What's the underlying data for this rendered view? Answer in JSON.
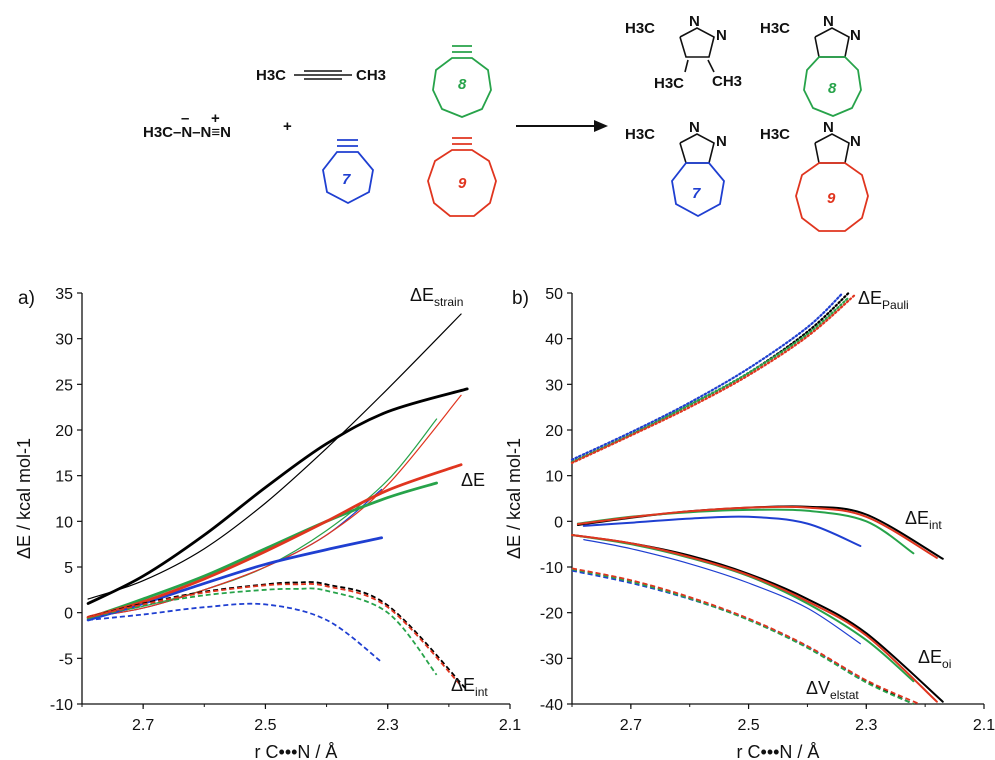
{
  "scheme": {
    "azide": "H3C–N–N≡N",
    "plus": "+",
    "butyne": "H3C—≡—CH3",
    "ring_labels": {
      "7": "7",
      "8": "8",
      "9": "9"
    },
    "methyl_label": "H3C",
    "methyl_label_r": "CH3",
    "triazole_n": "N",
    "colors": {
      "7": "#1f3fd1",
      "8": "#27a34a",
      "9": "#e0351f",
      "parent": "#000000"
    }
  },
  "chart_data": [
    {
      "panel": "a)",
      "type": "line",
      "xlabel": "r C•••N / Å",
      "ylabel": "ΔE / kcal mol-1",
      "xlim": [
        2.8,
        2.1
      ],
      "ylim": [
        -10,
        35
      ],
      "xticks": [
        "2.7",
        "2.5",
        "2.3",
        "2.1"
      ],
      "yticks": [
        "35",
        "30",
        "25",
        "20",
        "15",
        "10",
        "5",
        "0",
        "-5",
        "-10"
      ],
      "annotations": [
        {
          "text": "ΔE",
          "sub": "strain"
        },
        {
          "text": "ΔE",
          "sub": ""
        },
        {
          "text": "ΔE",
          "sub": "int"
        }
      ],
      "series": [
        {
          "term": "strain",
          "system": "parent",
          "style": "thin",
          "color": "#000000",
          "x": [
            2.79,
            2.7,
            2.6,
            2.5,
            2.4,
            2.3,
            2.18
          ],
          "y": [
            1.5,
            3.5,
            7.0,
            12.0,
            18.0,
            24.5,
            32.7
          ]
        },
        {
          "term": "strain",
          "system": "7",
          "style": "thin",
          "color": "#1f3fd1",
          "x": [
            2.79,
            2.7,
            2.6,
            2.5,
            2.4,
            2.31
          ],
          "y": [
            -0.5,
            0.5,
            2.5,
            5.0,
            8.5,
            13.5
          ]
        },
        {
          "term": "strain",
          "system": "8",
          "style": "thin",
          "color": "#27a34a",
          "x": [
            2.79,
            2.7,
            2.6,
            2.5,
            2.4,
            2.3,
            2.22
          ],
          "y": [
            -0.5,
            0.7,
            2.5,
            5.0,
            9.0,
            14.5,
            21.2
          ]
        },
        {
          "term": "strain",
          "system": "9",
          "style": "thin",
          "color": "#e0351f",
          "x": [
            2.79,
            2.7,
            2.6,
            2.5,
            2.4,
            2.3,
            2.18
          ],
          "y": [
            -0.5,
            0.5,
            2.5,
            5.0,
            8.5,
            14.0,
            23.8
          ]
        },
        {
          "term": "total",
          "system": "parent",
          "style": "bold",
          "color": "#000000",
          "x": [
            2.79,
            2.7,
            2.6,
            2.5,
            2.4,
            2.3,
            2.17
          ],
          "y": [
            1.0,
            4.0,
            8.5,
            13.7,
            18.5,
            22.0,
            24.5
          ]
        },
        {
          "term": "total",
          "system": "7",
          "style": "bold",
          "color": "#1f3fd1",
          "x": [
            2.79,
            2.7,
            2.6,
            2.5,
            2.4,
            2.31
          ],
          "y": [
            -0.8,
            1.0,
            3.2,
            5.3,
            6.9,
            8.2
          ]
        },
        {
          "term": "total",
          "system": "8",
          "style": "bold",
          "color": "#27a34a",
          "x": [
            2.79,
            2.7,
            2.6,
            2.5,
            2.4,
            2.3,
            2.22
          ],
          "y": [
            -0.6,
            1.5,
            4.0,
            7.0,
            10.0,
            12.6,
            14.2
          ]
        },
        {
          "term": "total",
          "system": "9",
          "style": "bold",
          "color": "#e0351f",
          "x": [
            2.79,
            2.7,
            2.6,
            2.5,
            2.4,
            2.3,
            2.18
          ],
          "y": [
            -0.5,
            1.2,
            3.7,
            6.7,
            10.0,
            13.4,
            16.2
          ]
        },
        {
          "term": "int",
          "system": "parent",
          "style": "dashed",
          "color": "#000000",
          "x": [
            2.79,
            2.7,
            2.6,
            2.5,
            2.45,
            2.4,
            2.3,
            2.17
          ],
          "y": [
            -0.5,
            1.0,
            2.3,
            3.1,
            3.3,
            3.1,
            0.8,
            -8.5
          ]
        },
        {
          "term": "int",
          "system": "7",
          "style": "dashed",
          "color": "#1f3fd1",
          "x": [
            2.79,
            2.7,
            2.6,
            2.5,
            2.4,
            2.31
          ],
          "y": [
            -0.8,
            -0.2,
            0.6,
            0.9,
            -0.8,
            -5.4
          ]
        },
        {
          "term": "int",
          "system": "8",
          "style": "dashed",
          "color": "#27a34a",
          "x": [
            2.79,
            2.7,
            2.6,
            2.5,
            2.45,
            2.4,
            2.3,
            2.22
          ],
          "y": [
            -0.6,
            0.8,
            1.9,
            2.5,
            2.6,
            2.4,
            0.0,
            -6.8
          ]
        },
        {
          "term": "int",
          "system": "9",
          "style": "dashed",
          "color": "#e0351f",
          "x": [
            2.79,
            2.7,
            2.6,
            2.5,
            2.45,
            2.4,
            2.3,
            2.18
          ],
          "y": [
            -0.5,
            0.9,
            2.2,
            3.0,
            3.1,
            2.9,
            0.6,
            -8.0
          ]
        }
      ]
    },
    {
      "panel": "b)",
      "type": "line",
      "xlabel": "r C•••N / Å",
      "ylabel": "ΔE / kcal mol-1",
      "xlim": [
        2.8,
        2.1
      ],
      "ylim": [
        -40,
        50
      ],
      "xticks": [
        "2.7",
        "2.5",
        "2.3",
        "2.1"
      ],
      "yticks": [
        "50",
        "40",
        "30",
        "20",
        "10",
        "0",
        "-10",
        "-20",
        "-30",
        "-40"
      ],
      "annotations": [
        {
          "text": "ΔE",
          "sub": "Pauli"
        },
        {
          "text": "ΔE",
          "sub": "int"
        },
        {
          "text": "ΔE",
          "sub": "oi"
        },
        {
          "text": "ΔV",
          "sub": "elstat"
        }
      ],
      "series": [
        {
          "term": "Pauli",
          "system": "parent",
          "style": "dotted",
          "color": "#000000",
          "x": [
            2.8,
            2.7,
            2.6,
            2.5,
            2.4,
            2.33
          ],
          "y": [
            13.0,
            19.0,
            25.5,
            32.5,
            41.5,
            50.0
          ]
        },
        {
          "term": "Pauli",
          "system": "7",
          "style": "dotted",
          "color": "#1f3fd1",
          "x": [
            2.8,
            2.7,
            2.6,
            2.5,
            2.4,
            2.34
          ],
          "y": [
            13.5,
            19.5,
            26.0,
            33.5,
            42.5,
            50.0
          ]
        },
        {
          "term": "Pauli",
          "system": "8",
          "style": "dotted",
          "color": "#27a34a",
          "x": [
            2.8,
            2.7,
            2.6,
            2.5,
            2.4,
            2.33
          ],
          "y": [
            13.0,
            19.0,
            25.5,
            32.5,
            41.0,
            49.0
          ]
        },
        {
          "term": "Pauli",
          "system": "9",
          "style": "dotted",
          "color": "#e0351f",
          "x": [
            2.8,
            2.7,
            2.6,
            2.5,
            2.4,
            2.32
          ],
          "y": [
            12.8,
            18.8,
            25.0,
            32.0,
            40.5,
            49.5
          ]
        },
        {
          "term": "int",
          "system": "parent",
          "style": "solid",
          "color": "#000000",
          "x": [
            2.79,
            2.7,
            2.6,
            2.5,
            2.4,
            2.3,
            2.17
          ],
          "y": [
            -0.8,
            0.8,
            2.2,
            3.0,
            3.2,
            1.5,
            -8.2
          ]
        },
        {
          "term": "int",
          "system": "7",
          "style": "solid",
          "color": "#1f3fd1",
          "x": [
            2.78,
            2.7,
            2.6,
            2.5,
            2.4,
            2.31
          ],
          "y": [
            -1.0,
            -0.3,
            0.6,
            1.0,
            -0.5,
            -5.4
          ]
        },
        {
          "term": "int",
          "system": "8",
          "style": "solid",
          "color": "#27a34a",
          "x": [
            2.79,
            2.7,
            2.6,
            2.5,
            2.4,
            2.3,
            2.22
          ],
          "y": [
            -0.5,
            1.0,
            2.0,
            2.5,
            2.3,
            0.0,
            -7.0
          ]
        },
        {
          "term": "int",
          "system": "9",
          "style": "solid",
          "color": "#e0351f",
          "x": [
            2.79,
            2.7,
            2.6,
            2.5,
            2.4,
            2.3,
            2.18
          ],
          "y": [
            -0.6,
            0.9,
            2.2,
            3.0,
            3.0,
            1.0,
            -8.0
          ]
        },
        {
          "term": "oi",
          "system": "parent",
          "style": "solid",
          "color": "#000000",
          "x": [
            2.8,
            2.7,
            2.6,
            2.5,
            2.4,
            2.3,
            2.17
          ],
          "y": [
            -3.0,
            -4.8,
            -7.5,
            -11.5,
            -17.0,
            -24.5,
            -39.5
          ]
        },
        {
          "term": "oi",
          "system": "7",
          "style": "solid-thin",
          "color": "#1f3fd1",
          "x": [
            2.78,
            2.7,
            2.6,
            2.5,
            2.4,
            2.31
          ],
          "y": [
            -4.0,
            -6.0,
            -9.3,
            -13.5,
            -19.0,
            -26.8
          ]
        },
        {
          "term": "oi",
          "system": "8",
          "style": "solid",
          "color": "#27a34a",
          "x": [
            2.8,
            2.7,
            2.6,
            2.5,
            2.4,
            2.3,
            2.22
          ],
          "y": [
            -3.0,
            -5.0,
            -8.0,
            -12.0,
            -18.0,
            -26.0,
            -35.0
          ]
        },
        {
          "term": "oi",
          "system": "9",
          "style": "solid",
          "color": "#e0351f",
          "x": [
            2.8,
            2.7,
            2.6,
            2.5,
            2.4,
            2.3,
            2.18
          ],
          "y": [
            -3.0,
            -4.8,
            -7.8,
            -11.8,
            -17.5,
            -25.0,
            -39.5
          ]
        },
        {
          "term": "elstat",
          "system": "parent",
          "style": "dashed",
          "color": "#000000",
          "x": [
            2.8,
            2.7,
            2.6,
            2.5,
            2.4,
            2.3,
            2.22
          ],
          "y": [
            -10.5,
            -13.0,
            -16.8,
            -21.5,
            -27.5,
            -35.0,
            -40.0
          ]
        },
        {
          "term": "elstat",
          "system": "7",
          "style": "dashed",
          "color": "#1f3fd1",
          "x": [
            2.8,
            2.7,
            2.6,
            2.5,
            2.4,
            2.31
          ],
          "y": [
            -10.8,
            -13.5,
            -17.0,
            -21.5,
            -27.5,
            -34.5
          ]
        },
        {
          "term": "elstat",
          "system": "8",
          "style": "dashed",
          "color": "#27a34a",
          "x": [
            2.8,
            2.7,
            2.6,
            2.5,
            2.4,
            2.3,
            2.22
          ],
          "y": [
            -10.5,
            -13.2,
            -16.9,
            -21.6,
            -27.7,
            -35.3,
            -40.0
          ]
        },
        {
          "term": "elstat",
          "system": "9",
          "style": "dashed",
          "color": "#e0351f",
          "x": [
            2.8,
            2.7,
            2.6,
            2.5,
            2.4,
            2.3,
            2.21
          ],
          "y": [
            -10.3,
            -12.9,
            -16.6,
            -21.3,
            -27.3,
            -34.8,
            -40.0
          ]
        }
      ]
    }
  ]
}
